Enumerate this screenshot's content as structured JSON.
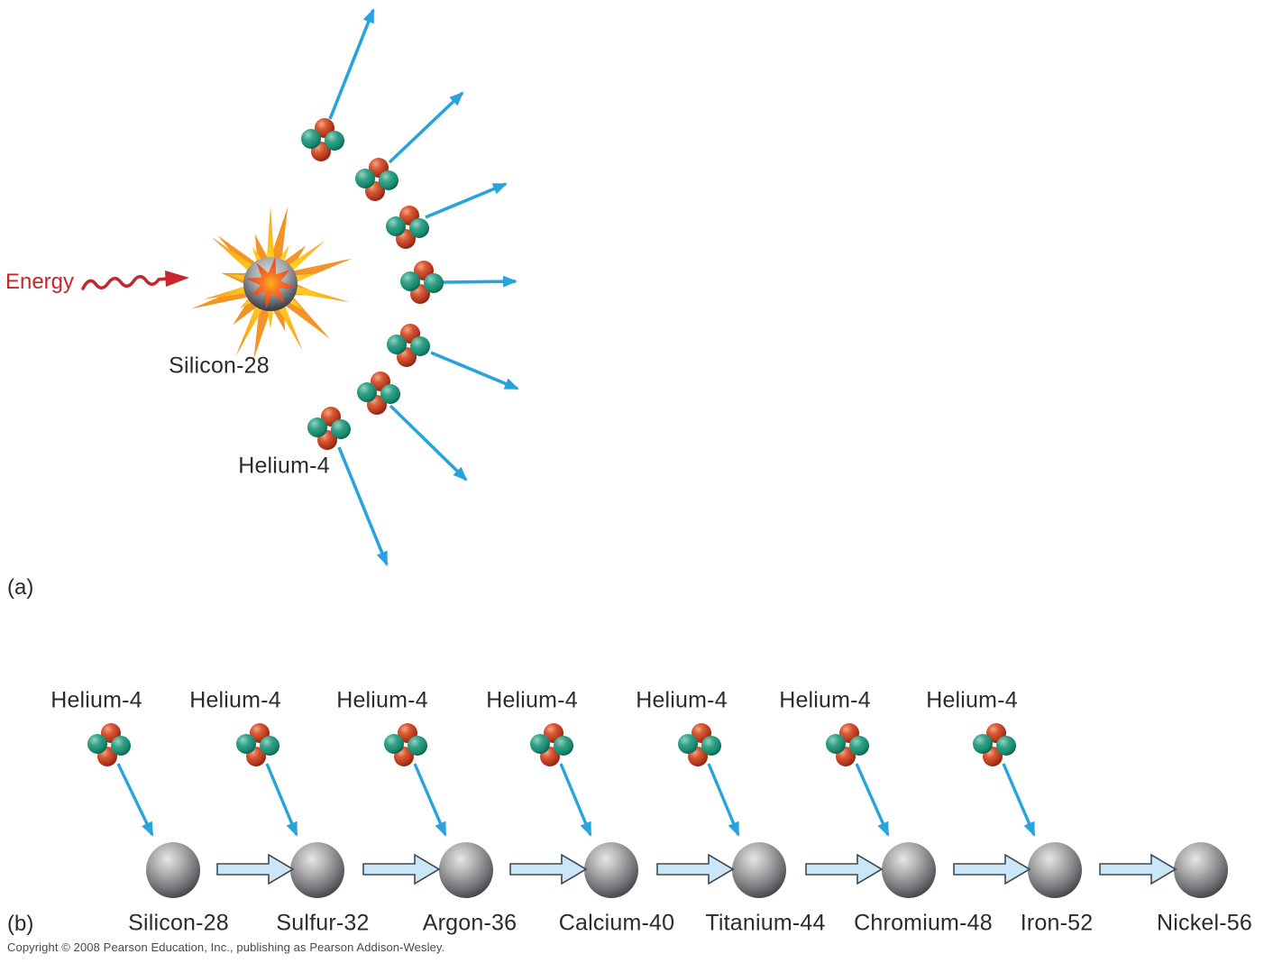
{
  "panel_a": {
    "tag": "(a)",
    "energy_label": "Energy",
    "nucleus_label": "Silicon-28",
    "fragment_label": "Helium-4"
  },
  "panel_b": {
    "tag": "(b)",
    "helium_label": "Helium-4",
    "elements": [
      "Silicon-28",
      "Sulfur-32",
      "Argon-36",
      "Calcium-40",
      "Titanium-44",
      "Chromium-48",
      "Iron-52",
      "Nickel-56"
    ]
  },
  "footer": {
    "copyright": "Copyright © 2008 Pearson Education, Inc., publishing as Pearson Addison-Wesley."
  },
  "colors": {
    "arrow_blue": "#29A3DD",
    "energy_red": "#C9252C",
    "block_arrow_fill": "#CBE6F7",
    "proton_red": "#C23A28",
    "neutron_green": "#1A9278",
    "burst_yellow": "#FFC91F",
    "burst_orange": "#F49426",
    "sphere_gray": "#8A8C90"
  }
}
